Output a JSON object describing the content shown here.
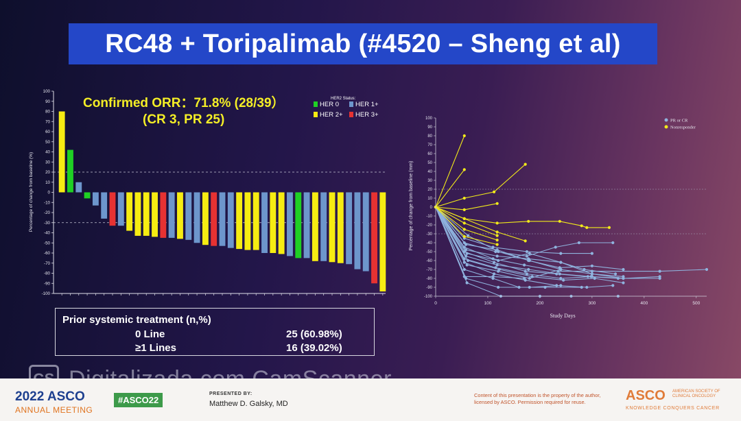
{
  "slide": {
    "title": "RC48 + Toripalimab (#4520 – Sheng et al)"
  },
  "left_chart": {
    "orr_line1": "Confirmed ORR：71.8% (28/39）",
    "orr_line2": "(CR  3, PR 25)",
    "legend_title": "HER2 Status:",
    "ylabel": "Percentage of change from baseline (%)",
    "yticks": [
      "100",
      "90",
      "80",
      "70",
      "60",
      "50",
      "40",
      "30",
      "20",
      "10",
      "0",
      "-10",
      "-20",
      "-30",
      "-40",
      "-50",
      "-60",
      "-70",
      "-80",
      "-90",
      "-100"
    ]
  },
  "right_chart": {
    "ylabel": "Percentage of change from baseline (mm)",
    "xlabel": "Study Days",
    "xticks": [
      "0",
      "100",
      "200",
      "300",
      "400",
      "500"
    ],
    "yticks": [
      "100",
      "90",
      "80",
      "70",
      "60",
      "50",
      "40",
      "30",
      "20",
      "10",
      "0",
      "-10",
      "-20",
      "-30",
      "-40",
      "-50",
      "-60",
      "-70",
      "-80",
      "-90",
      "-100"
    ],
    "legend": [
      "PR or CR",
      "Nonresponder"
    ]
  },
  "chart_data": [
    {
      "type": "bar",
      "title": "",
      "ylim": [
        -100,
        100
      ],
      "reference_lines": [
        20,
        -30
      ],
      "colors": {
        "HER 0": "#1fd024",
        "HER 1+": "#6d96cc",
        "HER 2+": "#f6ec12",
        "HER 3+": "#e63232"
      },
      "series": [
        {
          "name": "HER 0",
          "color": "#1fd024"
        },
        {
          "name": "HER 1+",
          "color": "#6d96cc"
        },
        {
          "name": "HER 2+",
          "color": "#f6ec12"
        },
        {
          "name": "HER 3+",
          "color": "#e63232"
        }
      ],
      "bars": [
        {
          "value": 80,
          "her2": "HER 2+"
        },
        {
          "value": 42,
          "her2": "HER 0"
        },
        {
          "value": 10,
          "her2": "HER 1+"
        },
        {
          "value": -6,
          "her2": "HER 0"
        },
        {
          "value": -13,
          "her2": "HER 1+"
        },
        {
          "value": -26,
          "her2": "HER 1+"
        },
        {
          "value": -33,
          "her2": "HER 3+"
        },
        {
          "value": -33,
          "her2": "HER 1+"
        },
        {
          "value": -38,
          "her2": "HER 2+"
        },
        {
          "value": -43,
          "her2": "HER 2+"
        },
        {
          "value": -43,
          "her2": "HER 2+"
        },
        {
          "value": -44,
          "her2": "HER 2+"
        },
        {
          "value": -45,
          "her2": "HER 3+"
        },
        {
          "value": -45,
          "her2": "HER 1+"
        },
        {
          "value": -46,
          "her2": "HER 2+"
        },
        {
          "value": -47,
          "her2": "HER 1+"
        },
        {
          "value": -50,
          "her2": "HER 1+"
        },
        {
          "value": -52,
          "her2": "HER 2+"
        },
        {
          "value": -53,
          "her2": "HER 3+"
        },
        {
          "value": -53,
          "her2": "HER 1+"
        },
        {
          "value": -55,
          "her2": "HER 1+"
        },
        {
          "value": -56,
          "her2": "HER 2+"
        },
        {
          "value": -57,
          "her2": "HER 2+"
        },
        {
          "value": -57,
          "her2": "HER 2+"
        },
        {
          "value": -60,
          "her2": "HER 1+"
        },
        {
          "value": -60,
          "her2": "HER 2+"
        },
        {
          "value": -61,
          "her2": "HER 2+"
        },
        {
          "value": -63,
          "her2": "HER 1+"
        },
        {
          "value": -65,
          "her2": "HER 0"
        },
        {
          "value": -65,
          "her2": "HER 1+"
        },
        {
          "value": -68,
          "her2": "HER 2+"
        },
        {
          "value": -68,
          "her2": "HER 1+"
        },
        {
          "value": -69,
          "her2": "HER 2+"
        },
        {
          "value": -70,
          "her2": "HER 2+"
        },
        {
          "value": -71,
          "her2": "HER 1+"
        },
        {
          "value": -76,
          "her2": "HER 1+"
        },
        {
          "value": -78,
          "her2": "HER 1+"
        },
        {
          "value": -90,
          "her2": "HER 3+"
        },
        {
          "value": -98,
          "her2": "HER 2+"
        }
      ]
    },
    {
      "type": "line",
      "title": "",
      "xlabel": "Study Days",
      "ylabel": "Percentage of change from baseline (mm)",
      "xlim": [
        0,
        520
      ],
      "ylim": [
        -100,
        100
      ],
      "reference_lines": [
        20,
        -30
      ],
      "series": [
        {
          "name": "Nonresponder",
          "color": "#f2ea1a",
          "lines": [
            [
              [
                0,
                0
              ],
              [
                55,
                80
              ]
            ],
            [
              [
                0,
                0
              ],
              [
                55,
                42
              ]
            ],
            [
              [
                0,
                0
              ],
              [
                55,
                10
              ],
              [
                112,
                17
              ],
              [
                172,
                48
              ]
            ],
            [
              [
                0,
                0
              ],
              [
                55,
                -3
              ],
              [
                118,
                4
              ]
            ],
            [
              [
                0,
                0
              ],
              [
                55,
                -13
              ],
              [
                118,
                -18
              ],
              [
                178,
                -16
              ],
              [
                238,
                -16
              ],
              [
                280,
                -21
              ],
              [
                290,
                -23
              ],
              [
                333,
                -23
              ]
            ],
            [
              [
                0,
                0
              ],
              [
                55,
                -13
              ],
              [
                118,
                -28
              ],
              [
                172,
                -38
              ]
            ],
            [
              [
                0,
                0
              ],
              [
                55,
                -18
              ],
              [
                118,
                -32
              ]
            ],
            [
              [
                0,
                0
              ],
              [
                55,
                -25
              ],
              [
                118,
                -37
              ]
            ],
            [
              [
                0,
                0
              ],
              [
                55,
                -33
              ],
              [
                118,
                -42
              ]
            ]
          ]
        },
        {
          "name": "PR or CR",
          "color": "#8fb3de",
          "lines": [
            [
              [
                0,
                0
              ],
              [
                55,
                -35
              ],
              [
                110,
                -45
              ],
              [
                175,
                -50
              ],
              [
                240,
                -52
              ],
              [
                300,
                -52
              ]
            ],
            [
              [
                0,
                0
              ],
              [
                55,
                -40
              ],
              [
                115,
                -50
              ],
              [
                175,
                -55
              ],
              [
                230,
                -45
              ],
              [
                275,
                -40
              ],
              [
                340,
                -40
              ]
            ],
            [
              [
                0,
                0
              ],
              [
                58,
                -42
              ],
              [
                118,
                -48
              ],
              [
                178,
                -60
              ],
              [
                238,
                -68
              ],
              [
                300,
                -66
              ],
              [
                360,
                -70
              ]
            ],
            [
              [
                0,
                0
              ],
              [
                55,
                -45
              ],
              [
                110,
                -58
              ],
              [
                170,
                -65
              ],
              [
                235,
                -72
              ],
              [
                300,
                -72
              ],
              [
                430,
                -72
              ],
              [
                520,
                -70
              ]
            ],
            [
              [
                0,
                0
              ],
              [
                58,
                -48
              ],
              [
                118,
                -55
              ],
              [
                178,
                -58
              ],
              [
                240,
                -62
              ],
              [
                285,
                -70
              ],
              [
                345,
                -75
              ]
            ],
            [
              [
                0,
                0
              ],
              [
                55,
                -50
              ],
              [
                112,
                -62
              ],
              [
                172,
                -72
              ],
              [
                232,
                -75
              ],
              [
                292,
                -78
              ],
              [
                350,
                -80
              ],
              [
                430,
                -80
              ]
            ],
            [
              [
                0,
                0
              ],
              [
                60,
                -52
              ],
              [
                120,
                -60
              ],
              [
                180,
                -52
              ],
              [
                240,
                -62
              ],
              [
                300,
                -75
              ],
              [
                360,
                -78
              ]
            ],
            [
              [
                0,
                0
              ],
              [
                58,
                -55
              ],
              [
                118,
                -65
              ],
              [
                178,
                -70
              ],
              [
                238,
                -75
              ],
              [
                298,
                -78
              ],
              [
                360,
                -80
              ],
              [
                430,
                -78
              ]
            ],
            [
              [
                0,
                0
              ],
              [
                55,
                -58
              ],
              [
                115,
                -68
              ],
              [
                175,
                -75
              ],
              [
                240,
                -80
              ],
              [
                300,
                -78
              ]
            ],
            [
              [
                0,
                0
              ],
              [
                62,
                -60
              ],
              [
                122,
                -70
              ],
              [
                185,
                -78
              ],
              [
                245,
                -82
              ],
              [
                305,
                -80
              ],
              [
                360,
                -85
              ]
            ],
            [
              [
                0,
                0
              ],
              [
                55,
                -62
              ],
              [
                112,
                -75
              ],
              [
                172,
                -82
              ],
              [
                232,
                -88
              ],
              [
                290,
                -90
              ],
              [
                340,
                -88
              ]
            ],
            [
              [
                0,
                0
              ],
              [
                60,
                -65
              ],
              [
                120,
                -72
              ],
              [
                180,
                -80
              ],
              [
                240,
                -70
              ],
              [
                300,
                -75
              ],
              [
                360,
                -80
              ]
            ],
            [
              [
                0,
                0
              ],
              [
                55,
                -70
              ],
              [
                110,
                -80
              ],
              [
                160,
                -90
              ],
              [
                210,
                -90
              ],
              [
                280,
                -90
              ]
            ],
            [
              [
                0,
                0
              ],
              [
                58,
                -80
              ],
              [
                120,
                -90
              ],
              [
                180,
                -90
              ],
              [
                240,
                -88
              ]
            ],
            [
              [
                0,
                0
              ],
              [
                60,
                -85
              ],
              [
                125,
                -100
              ],
              [
                200,
                -100
              ],
              [
                260,
                -100
              ],
              [
                350,
                -100
              ]
            ],
            [
              [
                0,
                0
              ],
              [
                55,
                -78
              ],
              [
                110,
                -78
              ],
              [
                170,
                -80
              ]
            ],
            [
              [
                0,
                0
              ],
              [
                62,
                -32
              ],
              [
                120,
                -50
              ],
              [
                180,
                -60
              ],
              [
                240,
                -70
              ]
            ]
          ]
        }
      ]
    }
  ],
  "table": {
    "header": "Prior systemic treatment (n,%)",
    "rows": [
      {
        "label": "0 Line",
        "value": "25 (60.98%)"
      },
      {
        "label": "≥1 Lines",
        "value": "16 (39.02%)"
      }
    ]
  },
  "watermark": {
    "logo": "CS",
    "text": "Digitalizada com CamScanner"
  },
  "footer": {
    "year": "2022",
    "brand": "ASCO",
    "subtitle": "ANNUAL MEETING",
    "hashtag": "#ASCO22",
    "presented_by_label": "PRESENTED BY:",
    "presenter": "Matthew D. Galsky, MD",
    "copyright": "Content of this presentation is the property of the author, licensed by ASCO. Permission required for reuse.",
    "asco_logo": "ASCO",
    "asco_logo_sub": "AMERICAN SOCIETY OF CLINICAL ONCOLOGY",
    "tagline": "KNOWLEDGE CONQUERS CANCER"
  }
}
